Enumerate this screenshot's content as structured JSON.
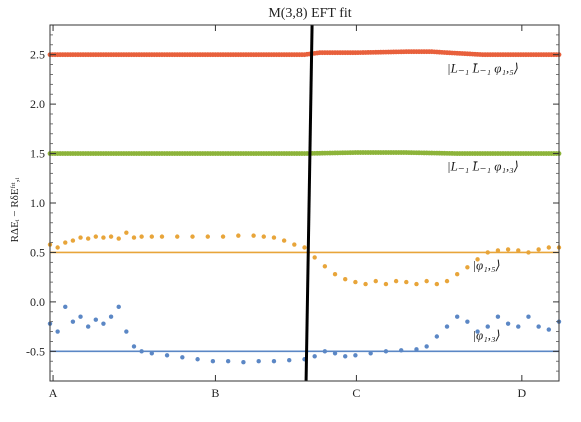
{
  "chart_data": {
    "type": "scatter",
    "title": "M(3,8) EFT fit",
    "xlabel": "",
    "ylabel": "RΔEᵢ − RδEᶠᶦᵗ,ᵢ",
    "xlim": [
      0,
      100
    ],
    "ylim": [
      -0.8,
      2.8
    ],
    "yticks": [
      -0.5,
      0.0,
      0.5,
      1.0,
      1.5,
      2.0,
      2.5
    ],
    "ytick_labels": [
      "-0.5",
      "0.0",
      "0.5",
      "1.0",
      "1.5",
      "2.0",
      "2.5"
    ],
    "xticks": [
      0.6,
      32.5,
      60.2,
      92.7
    ],
    "xtick_labels": [
      "A",
      "B",
      "C",
      "D"
    ],
    "grid": false,
    "vertical_marker_x": 50.9,
    "series": [
      {
        "name": "|L₋₁ L̄₋₁ φ₁,₅⟩",
        "color": "#e8603c",
        "reference": 2.5,
        "label_anchor": [
          78,
          2.32
        ],
        "points": [
          [
            0,
            2.5
          ],
          [
            5,
            2.5
          ],
          [
            10,
            2.5
          ],
          [
            15,
            2.5
          ],
          [
            20,
            2.5
          ],
          [
            25,
            2.5
          ],
          [
            30,
            2.5
          ],
          [
            35,
            2.5
          ],
          [
            40,
            2.5
          ],
          [
            45,
            2.5
          ],
          [
            50,
            2.5
          ],
          [
            53,
            2.52
          ],
          [
            60,
            2.52
          ],
          [
            70,
            2.53
          ],
          [
            75,
            2.53
          ],
          [
            78,
            2.52
          ],
          [
            85,
            2.5
          ],
          [
            92,
            2.5
          ],
          [
            96,
            2.5
          ],
          [
            100,
            2.5
          ]
        ]
      },
      {
        "name": "|L₋₁ L̄₋₁ φ₁,₃⟩",
        "color": "#8db43a",
        "reference": 1.5,
        "label_anchor": [
          78,
          1.33
        ],
        "points": [
          [
            0,
            1.5
          ],
          [
            10,
            1.5
          ],
          [
            20,
            1.5
          ],
          [
            30,
            1.5
          ],
          [
            40,
            1.5
          ],
          [
            50,
            1.5
          ],
          [
            60,
            1.51
          ],
          [
            70,
            1.51
          ],
          [
            80,
            1.5
          ],
          [
            90,
            1.5
          ],
          [
            100,
            1.5
          ]
        ]
      },
      {
        "name": "|φ₁,₅⟩",
        "color": "#e8a53a",
        "reference": 0.5,
        "label_anchor": [
          83,
          0.33
        ],
        "points": [
          [
            0,
            0.58
          ],
          [
            1.5,
            0.55
          ],
          [
            3,
            0.6
          ],
          [
            4.5,
            0.62
          ],
          [
            6,
            0.65
          ],
          [
            7.5,
            0.64
          ],
          [
            9,
            0.66
          ],
          [
            10.5,
            0.65
          ],
          [
            12,
            0.66
          ],
          [
            13.5,
            0.64
          ],
          [
            15,
            0.7
          ],
          [
            16.5,
            0.65
          ],
          [
            18,
            0.66
          ],
          [
            20,
            0.66
          ],
          [
            22,
            0.66
          ],
          [
            25,
            0.66
          ],
          [
            28,
            0.66
          ],
          [
            31,
            0.66
          ],
          [
            34,
            0.66
          ],
          [
            37,
            0.67
          ],
          [
            40,
            0.67
          ],
          [
            42,
            0.66
          ],
          [
            44,
            0.65
          ],
          [
            46,
            0.62
          ],
          [
            48,
            0.58
          ],
          [
            50,
            0.55
          ],
          [
            52,
            0.45
          ],
          [
            54,
            0.36
          ],
          [
            56,
            0.28
          ],
          [
            58,
            0.23
          ],
          [
            60,
            0.2
          ],
          [
            62,
            0.18
          ],
          [
            64,
            0.21
          ],
          [
            66,
            0.18
          ],
          [
            68,
            0.21
          ],
          [
            70,
            0.2
          ],
          [
            72,
            0.18
          ],
          [
            74,
            0.21
          ],
          [
            76,
            0.18
          ],
          [
            78,
            0.21
          ],
          [
            80,
            0.28
          ],
          [
            82,
            0.35
          ],
          [
            84,
            0.43
          ],
          [
            86,
            0.5
          ],
          [
            88,
            0.52
          ],
          [
            90,
            0.53
          ],
          [
            92,
            0.52
          ],
          [
            94,
            0.5
          ],
          [
            96,
            0.53
          ],
          [
            98,
            0.55
          ],
          [
            100,
            0.55
          ]
        ]
      },
      {
        "name": "|φ₁,₃⟩",
        "color": "#5b87c5",
        "reference": -0.5,
        "label_anchor": [
          83,
          -0.38
        ],
        "points": [
          [
            0,
            -0.22
          ],
          [
            1.5,
            -0.3
          ],
          [
            3,
            -0.05
          ],
          [
            4.5,
            -0.2
          ],
          [
            6,
            -0.15
          ],
          [
            7.5,
            -0.25
          ],
          [
            9,
            -0.18
          ],
          [
            10.5,
            -0.22
          ],
          [
            12,
            -0.15
          ],
          [
            13.5,
            -0.05
          ],
          [
            15,
            -0.3
          ],
          [
            16.5,
            -0.45
          ],
          [
            18,
            -0.5
          ],
          [
            20,
            -0.52
          ],
          [
            23,
            -0.54
          ],
          [
            26,
            -0.56
          ],
          [
            29,
            -0.58
          ],
          [
            32,
            -0.6
          ],
          [
            35,
            -0.6
          ],
          [
            38,
            -0.61
          ],
          [
            41,
            -0.6
          ],
          [
            44,
            -0.6
          ],
          [
            47,
            -0.59
          ],
          [
            50,
            -0.58
          ],
          [
            52,
            -0.55
          ],
          [
            54,
            -0.5
          ],
          [
            56,
            -0.52
          ],
          [
            58,
            -0.55
          ],
          [
            60,
            -0.54
          ],
          [
            63,
            -0.52
          ],
          [
            66,
            -0.5
          ],
          [
            69,
            -0.49
          ],
          [
            72,
            -0.48
          ],
          [
            74,
            -0.45
          ],
          [
            76,
            -0.35
          ],
          [
            78,
            -0.25
          ],
          [
            80,
            -0.15
          ],
          [
            82,
            -0.2
          ],
          [
            84,
            -0.3
          ],
          [
            86,
            -0.25
          ],
          [
            88,
            -0.15
          ],
          [
            90,
            -0.22
          ],
          [
            92,
            -0.25
          ],
          [
            94,
            -0.15
          ],
          [
            96,
            -0.25
          ],
          [
            98,
            -0.28
          ],
          [
            100,
            -0.2
          ]
        ]
      }
    ]
  }
}
